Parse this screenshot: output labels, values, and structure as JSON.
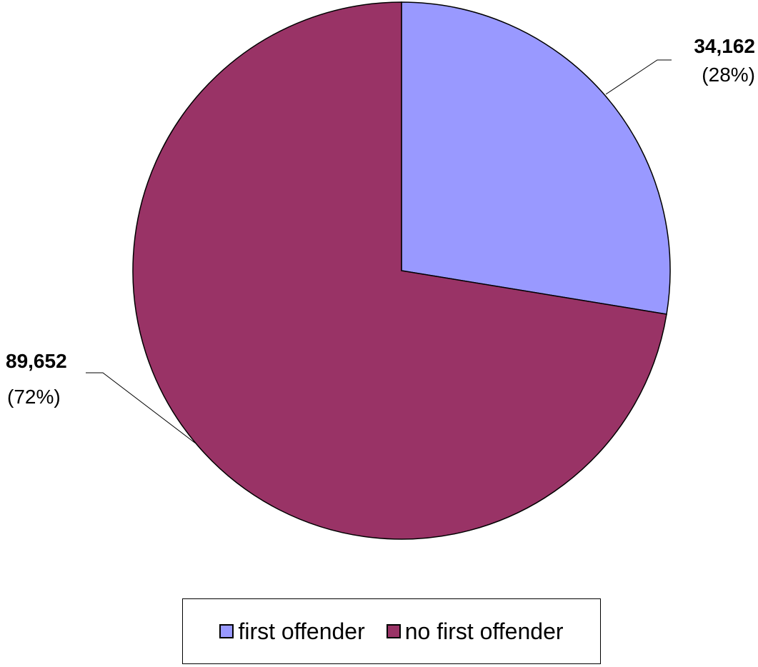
{
  "chart_data": {
    "type": "pie",
    "title": "",
    "start_angle_deg": 0,
    "direction": "clockwise",
    "slices": [
      {
        "name": "first offender",
        "value": 34162,
        "value_text": "34,162",
        "percent_text": "(28%)",
        "color": "#9999ff"
      },
      {
        "name": "no first offender",
        "value": 89652,
        "value_text": "89,652",
        "percent_text": "(72%)",
        "color": "#993366"
      }
    ],
    "legend": {
      "position": "bottom",
      "items": [
        "first offender",
        "no first offender"
      ]
    }
  }
}
